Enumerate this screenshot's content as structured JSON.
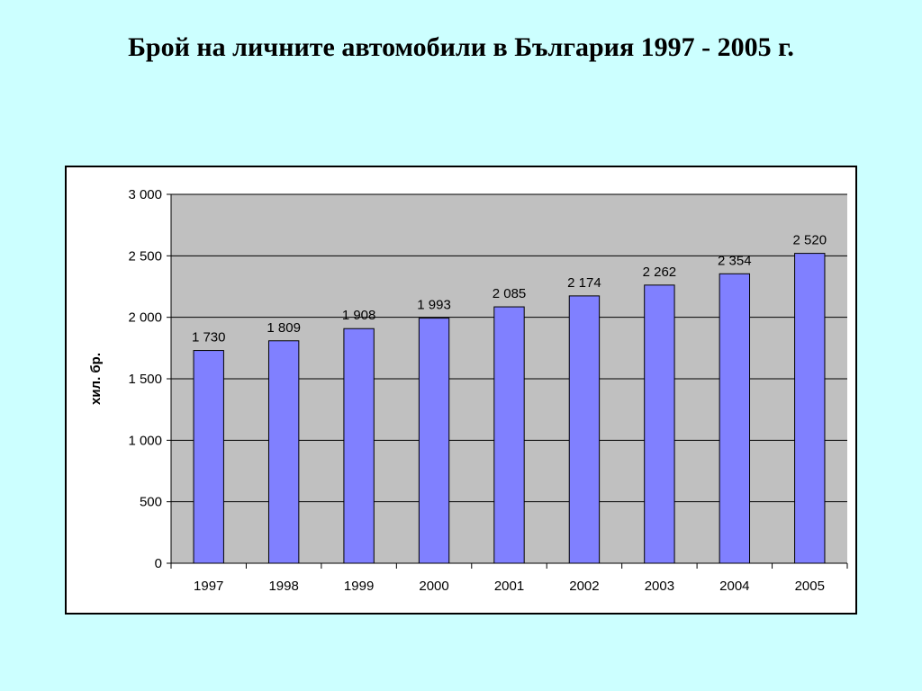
{
  "slide": {
    "title": "Брой на личните автомобили в България 1997 - 2005 г."
  },
  "chart_data": {
    "type": "bar",
    "title": "",
    "xlabel": "",
    "ylabel": "хил. бр.",
    "categories": [
      "1997",
      "1998",
      "1999",
      "2000",
      "2001",
      "2002",
      "2003",
      "2004",
      "2005"
    ],
    "values": [
      1730,
      1809,
      1908,
      1993,
      2085,
      2174,
      2262,
      2354,
      2520
    ],
    "value_labels": [
      "1 730",
      "1 809",
      "1 908",
      "1 993",
      "2 085",
      "2 174",
      "2 262",
      "2 354",
      "2 520"
    ],
    "yticks": [
      0,
      500,
      1000,
      1500,
      2000,
      2500,
      3000
    ],
    "ytick_labels": [
      "0",
      "500",
      "1 000",
      "1 500",
      "2 000",
      "2 500",
      "3 000"
    ],
    "ylim": [
      0,
      3000
    ],
    "grid": true,
    "legend": "none",
    "colors": {
      "bar_fill": "#8080ff",
      "bar_stroke": "#000000",
      "plot_background": "#c0c0c0",
      "slide_background": "#ccffff",
      "frame_background": "#ffffff"
    }
  }
}
